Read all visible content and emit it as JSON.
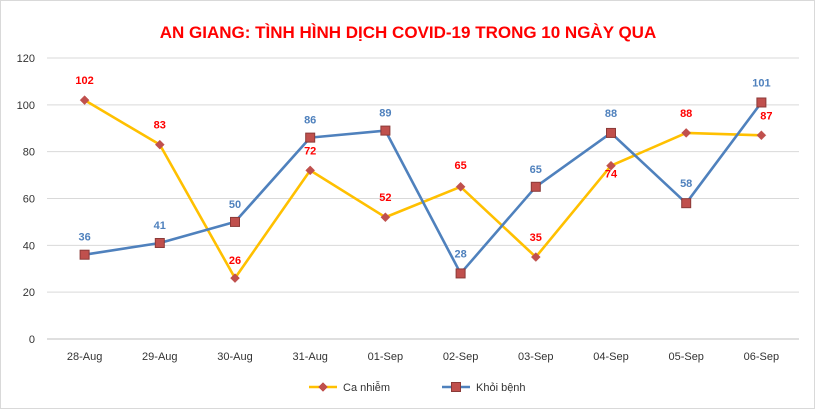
{
  "chart_data": {
    "type": "line",
    "title": "AN GIANG: TÌNH HÌNH DỊCH COVID-19 TRONG 10 NGÀY QUA",
    "categories": [
      "28-Aug",
      "29-Aug",
      "30-Aug",
      "31-Aug",
      "01-Sep",
      "02-Sep",
      "03-Sep",
      "04-Sep",
      "05-Sep",
      "06-Sep"
    ],
    "series": [
      {
        "name": "Ca nhiễm",
        "values": [
          102,
          83,
          26,
          72,
          52,
          65,
          35,
          74,
          88,
          87
        ],
        "color": "#FFC000",
        "marker_color": "#C0504D",
        "label_color": "#FF0000",
        "marker": "diamond"
      },
      {
        "name": "Khỏi bệnh",
        "values": [
          36,
          41,
          50,
          86,
          89,
          28,
          65,
          88,
          58,
          101
        ],
        "color": "#4F81BD",
        "marker_color": "#C0504D",
        "label_color": "#4F81BD",
        "marker": "square"
      }
    ],
    "ylim": [
      0,
      120
    ],
    "yticks": [
      0,
      20,
      40,
      60,
      80,
      100,
      120
    ],
    "grid": true,
    "legend_position": "bottom",
    "title_color": "#FF0000"
  }
}
